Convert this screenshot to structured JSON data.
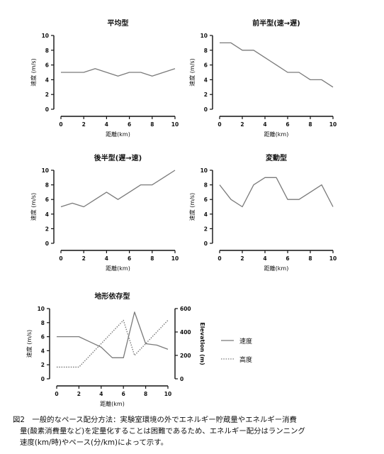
{
  "charts": [
    {
      "type": "line",
      "title": "平均型",
      "xlabel": "距離(km)",
      "ylabel": "速度 (m/s)",
      "xlim": [
        0,
        10
      ],
      "ylim": [
        0,
        10
      ],
      "xticks": [
        0,
        2,
        4,
        6,
        8,
        10
      ],
      "yticks": [
        0,
        2,
        4,
        6,
        8,
        10
      ],
      "x": [
        0,
        1,
        2,
        3,
        4,
        5,
        6,
        7,
        8,
        9,
        10
      ],
      "series": [
        {
          "values": [
            5,
            5,
            5,
            5.5,
            5,
            4.5,
            5,
            5,
            4.5,
            5,
            5.5
          ]
        }
      ]
    },
    {
      "type": "line",
      "title": "前半型(速→遅)",
      "xlabel": "距離(km)",
      "ylabel": "速度 (m/s)",
      "xlim": [
        0,
        10
      ],
      "ylim": [
        0,
        10
      ],
      "xticks": [
        0,
        2,
        4,
        6,
        8,
        10
      ],
      "yticks": [
        0,
        2,
        4,
        6,
        8,
        10
      ],
      "x": [
        0,
        1,
        2,
        3,
        4,
        5,
        6,
        7,
        8,
        9,
        10
      ],
      "series": [
        {
          "values": [
            9,
            9,
            8,
            8,
            7,
            6,
            5,
            5,
            4,
            4,
            3
          ]
        }
      ]
    },
    {
      "type": "line",
      "title": "後半型(遅→速)",
      "xlabel": "距離(km)",
      "ylabel": "速度 (m/s)",
      "xlim": [
        0,
        10
      ],
      "ylim": [
        0,
        10
      ],
      "xticks": [
        0,
        2,
        4,
        6,
        8,
        10
      ],
      "yticks": [
        0,
        2,
        4,
        6,
        8,
        10
      ],
      "x": [
        0,
        1,
        2,
        3,
        4,
        5,
        6,
        7,
        8,
        9,
        10
      ],
      "series": [
        {
          "values": [
            5,
            5.5,
            5,
            6,
            7,
            6,
            7,
            8,
            8,
            9,
            10
          ]
        }
      ]
    },
    {
      "type": "line",
      "title": "変動型",
      "xlabel": "距離(km)",
      "ylabel": "速度 (m/s)",
      "xlim": [
        0,
        10
      ],
      "ylim": [
        0,
        10
      ],
      "xticks": [
        0,
        2,
        4,
        6,
        8,
        10
      ],
      "yticks": [
        0,
        2,
        4,
        6,
        8,
        10
      ],
      "x": [
        0,
        1,
        2,
        3,
        4,
        5,
        6,
        7,
        8,
        9,
        10
      ],
      "series": [
        {
          "values": [
            8,
            6,
            5,
            8,
            9,
            9,
            6,
            6,
            7,
            8,
            5
          ]
        }
      ]
    },
    {
      "type": "line",
      "title": "地形依存型",
      "xlabel": "距離(km)",
      "ylabel": "速度 (m/s)",
      "y2label": "Elevation (m)",
      "xlim": [
        0,
        10
      ],
      "ylim": [
        0,
        10
      ],
      "y2lim": [
        0,
        600
      ],
      "xticks": [
        0,
        2,
        4,
        6,
        8,
        10
      ],
      "yticks": [
        0,
        2,
        4,
        6,
        8,
        10
      ],
      "y2ticks": [
        0,
        200,
        400,
        600
      ],
      "series": [
        {
          "name": "速度",
          "axis": "left",
          "style": "solid",
          "x": [
            0,
            2,
            4,
            5,
            6,
            7,
            8,
            9,
            10
          ],
          "values": [
            6,
            6,
            4.5,
            3,
            3,
            9.5,
            5,
            4.8,
            4.2
          ]
        },
        {
          "name": "高度",
          "axis": "right",
          "style": "dotted",
          "x": [
            0,
            2,
            4,
            6,
            7,
            8,
            10
          ],
          "values": [
            100,
            100,
            300,
            500,
            200,
            300,
            500
          ]
        }
      ],
      "legend": "right"
    }
  ],
  "caption": {
    "line1": "図2　一般的なペース配分方法：実験室環境の外でエネルギー貯蔵量やエネルギー消費",
    "line2": "量(酸素消費量など)を定量化することは困難であるため、エネルギー配分はランニング",
    "line3": "速度(km/時)やペース(分/km)によって示す。"
  },
  "colors": {
    "line": "#7a7a7a",
    "axis": "#111111",
    "text": "#111111"
  }
}
